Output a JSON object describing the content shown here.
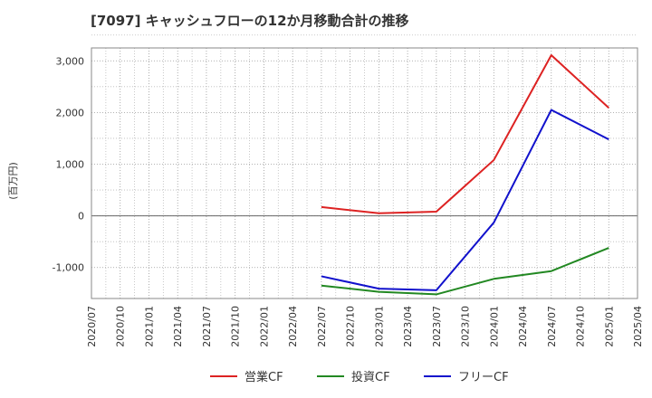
{
  "chart_data": {
    "type": "line",
    "title": "[7097]  キャッシュフローの12か月移動合計の推移",
    "ylabel": "(百万円)",
    "xlabel": "",
    "x_ticks": [
      "2020/07",
      "2020/10",
      "2021/01",
      "2021/04",
      "2021/07",
      "2021/10",
      "2022/01",
      "2022/04",
      "2022/07",
      "2022/10",
      "2023/01",
      "2023/04",
      "2023/07",
      "2023/10",
      "2024/01",
      "2024/04",
      "2024/07",
      "2024/10",
      "2025/01",
      "2025/04"
    ],
    "y_ticks": [
      -1000,
      0,
      1000,
      2000,
      3000
    ],
    "y_tick_labels": [
      "-1,000",
      "0",
      "1,000",
      "2,000",
      "3,000"
    ],
    "ylim": [
      -1600,
      3250
    ],
    "grid": true,
    "legend_position": "bottom",
    "series": [
      {
        "name": "営業CF",
        "color": "#dd2222",
        "x": [
          "2022/07",
          "2023/01",
          "2023/07",
          "2024/01",
          "2024/07",
          "2025/01"
        ],
        "values": [
          170,
          50,
          80,
          1080,
          3110,
          2090
        ]
      },
      {
        "name": "投資CF",
        "color": "#228822",
        "x": [
          "2022/07",
          "2023/01",
          "2023/07",
          "2024/01",
          "2024/07",
          "2025/01"
        ],
        "values": [
          -1350,
          -1470,
          -1520,
          -1220,
          -1070,
          -620
        ]
      },
      {
        "name": "フリーCF",
        "color": "#1111cc",
        "x": [
          "2022/07",
          "2023/01",
          "2023/07",
          "2024/01",
          "2024/07",
          "2025/01"
        ],
        "values": [
          -1170,
          -1410,
          -1440,
          -130,
          2050,
          1480
        ]
      }
    ]
  }
}
